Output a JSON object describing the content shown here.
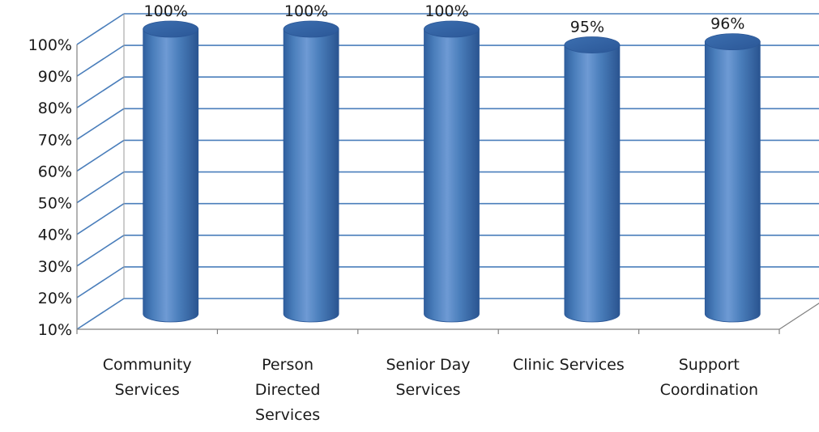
{
  "chart_data": {
    "type": "bar",
    "style": "3d-cylinder",
    "categories": [
      [
        "Community",
        "Services"
      ],
      [
        "Person",
        "Directed",
        "Services"
      ],
      [
        "Senior Day",
        "Services"
      ],
      [
        "Clinic Services"
      ],
      [
        "Support",
        "Coordination"
      ]
    ],
    "values": [
      100,
      100,
      100,
      95,
      96
    ],
    "data_labels": [
      "100%",
      "100%",
      "100%",
      "95%",
      "96%"
    ],
    "title": "",
    "xlabel": "",
    "ylabel": "",
    "ylim": [
      10,
      100
    ],
    "yticks": [
      10,
      20,
      30,
      40,
      50,
      60,
      70,
      80,
      90,
      100
    ],
    "ytick_labels": [
      "10%",
      "20%",
      "30%",
      "40%",
      "50%",
      "60%",
      "70%",
      "80%",
      "90%",
      "100%"
    ],
    "grid": true,
    "legend": "none",
    "colors": {
      "bar_fill": "#4a7ebb",
      "bar_dark": "#2b5797",
      "bar_light": "#7fa8dc",
      "grid": "#4a7ebb"
    }
  }
}
